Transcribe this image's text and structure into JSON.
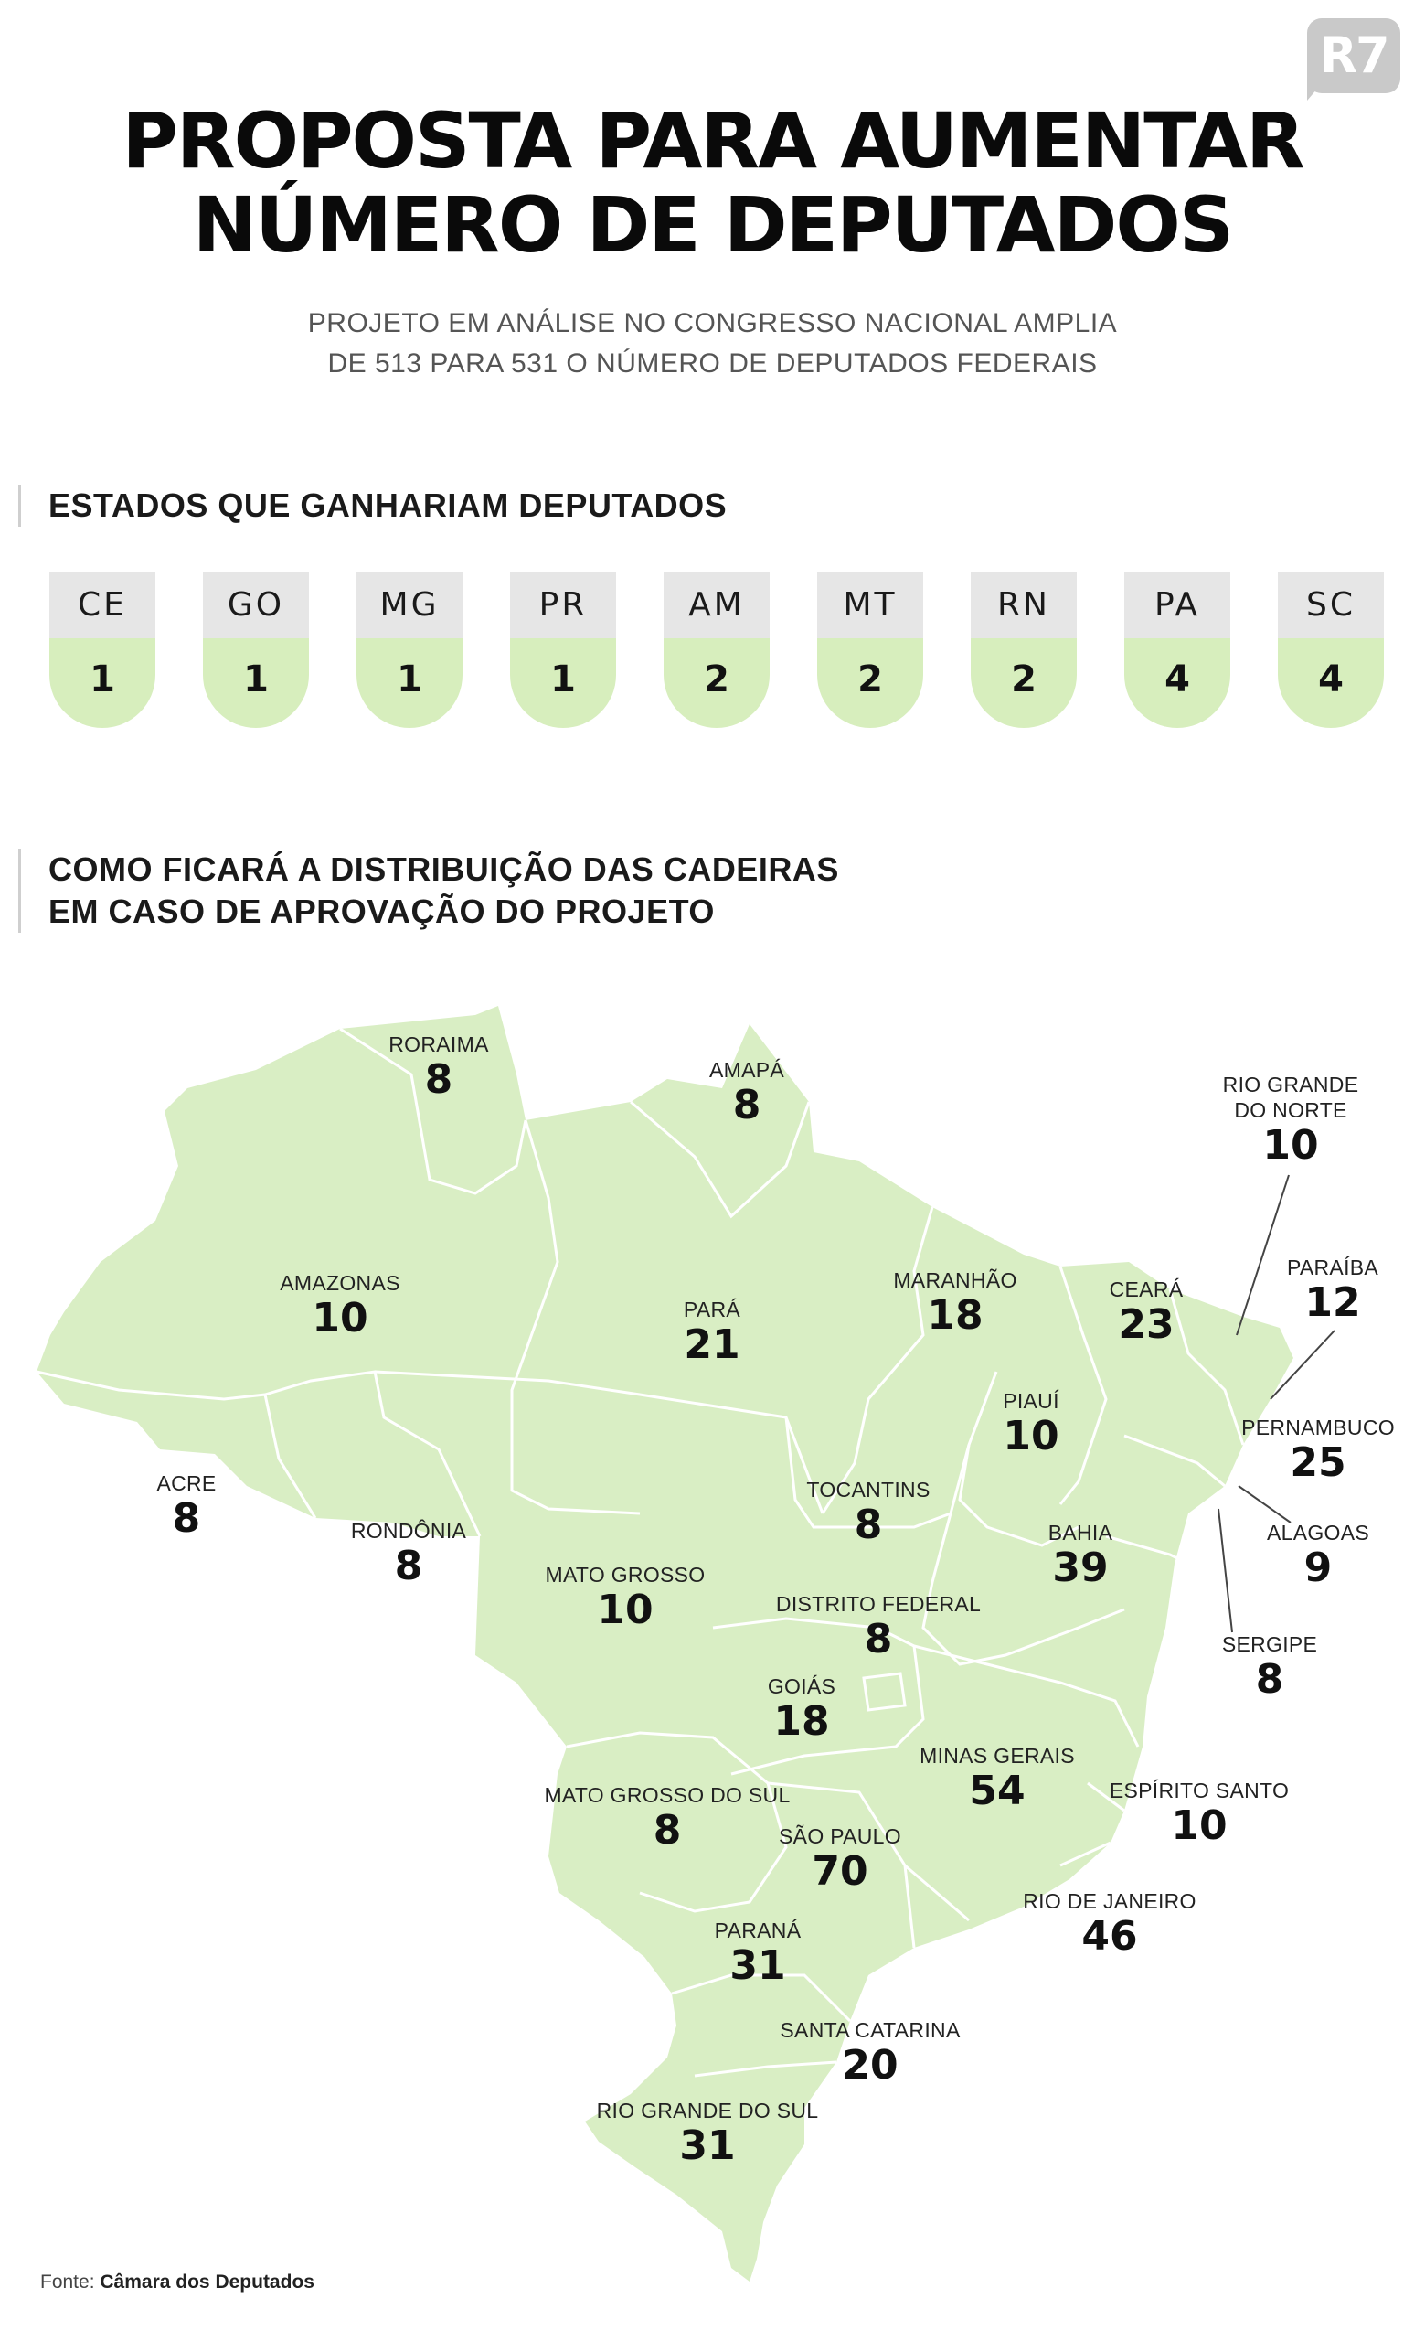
{
  "brand": {
    "logo_text": "R7"
  },
  "header": {
    "title_line1": "PROPOSTA PARA AUMENTAR",
    "title_line2": "NÚMERO DE DEPUTADOS",
    "subtitle_line1": "PROJETO EM ANÁLISE NO CONGRESSO NACIONAL AMPLIA",
    "subtitle_line2": "DE 513 PARA 531 O NÚMERO DE DEPUTADOS FEDERAIS"
  },
  "section_gains": {
    "heading": "ESTADOS QUE GANHARIAM DEPUTADOS",
    "states": [
      {
        "code": "CE",
        "gain": "1"
      },
      {
        "code": "GO",
        "gain": "1"
      },
      {
        "code": "MG",
        "gain": "1"
      },
      {
        "code": "PR",
        "gain": "1"
      },
      {
        "code": "AM",
        "gain": "2"
      },
      {
        "code": "MT",
        "gain": "2"
      },
      {
        "code": "RN",
        "gain": "2"
      },
      {
        "code": "PA",
        "gain": "4"
      },
      {
        "code": "SC",
        "gain": "4"
      }
    ]
  },
  "section_map": {
    "heading_line1": "COMO FICARÁ A DISTRIBUIÇÃO DAS CADEIRAS",
    "heading_line2": "EM CASO DE APROVAÇÃO DO PROJETO",
    "colors": {
      "land": "#d9eec4",
      "border": "#ffffff",
      "leader": "#444444"
    },
    "states": [
      {
        "name": "RORAIMA",
        "seats": "8"
      },
      {
        "name": "AMAPÁ",
        "seats": "8"
      },
      {
        "name": "RIO GRANDE",
        "name2": "DO NORTE",
        "seats": "10"
      },
      {
        "name": "AMAZONAS",
        "seats": "10"
      },
      {
        "name": "PARÁ",
        "seats": "21"
      },
      {
        "name": "MARANHÃO",
        "seats": "18"
      },
      {
        "name": "CEARÁ",
        "seats": "23"
      },
      {
        "name": "PARAÍBA",
        "seats": "12"
      },
      {
        "name": "PIAUÍ",
        "seats": "10"
      },
      {
        "name": "PERNAMBUCO",
        "seats": "25"
      },
      {
        "name": "ACRE",
        "seats": "8"
      },
      {
        "name": "TOCANTINS",
        "seats": "8"
      },
      {
        "name": "RONDÔNIA",
        "seats": "8"
      },
      {
        "name": "BAHIA",
        "seats": "39"
      },
      {
        "name": "ALAGOAS",
        "seats": "9"
      },
      {
        "name": "MATO GROSSO",
        "seats": "10"
      },
      {
        "name": "DISTRITO FEDERAL",
        "seats": "8"
      },
      {
        "name": "SERGIPE",
        "seats": "8"
      },
      {
        "name": "GOIÁS",
        "seats": "18"
      },
      {
        "name": "MINAS GERAIS",
        "seats": "54"
      },
      {
        "name": "ESPÍRITO SANTO",
        "seats": "10"
      },
      {
        "name": "MATO GROSSO DO SUL",
        "seats": "8"
      },
      {
        "name": "SÃO PAULO",
        "seats": "70"
      },
      {
        "name": "RIO DE JANEIRO",
        "seats": "46"
      },
      {
        "name": "PARANÁ",
        "seats": "31"
      },
      {
        "name": "SANTA CATARINA",
        "seats": "20"
      },
      {
        "name": "RIO GRANDE DO SUL",
        "seats": "31"
      }
    ]
  },
  "footer": {
    "source_label": "Fonte:",
    "source_name": "Câmara dos Deputados"
  }
}
